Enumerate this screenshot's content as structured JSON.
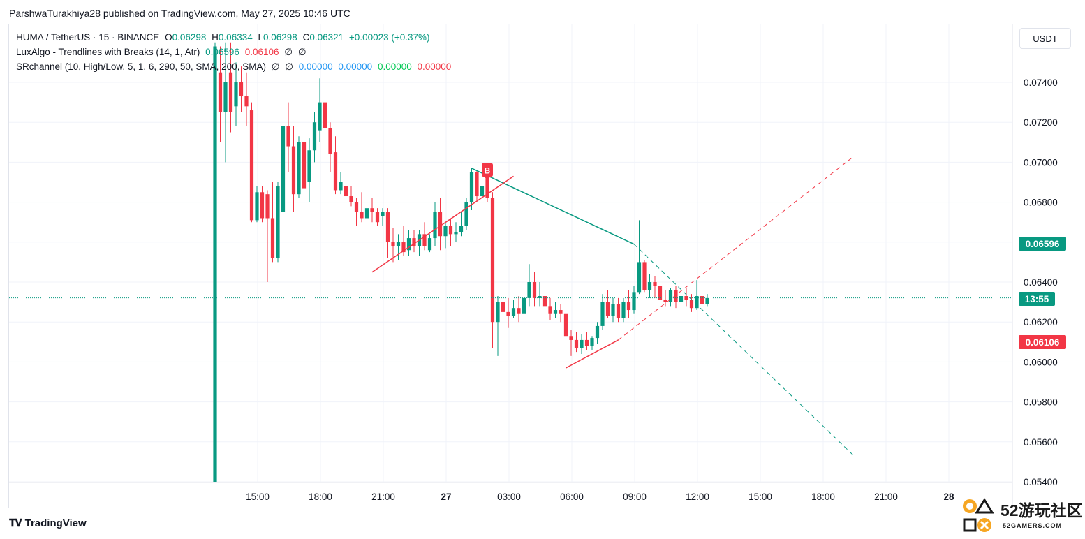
{
  "header": {
    "published": "ParshwaTurakhiya28 published on TradingView.com, May 27, 2025 10:46 UTC"
  },
  "legend": {
    "symbol": "HUMA / TetherUS · 15 · BINANCE",
    "o_label": "O",
    "o_value": "0.06298",
    "h_label": "H",
    "h_value": "0.06334",
    "l_label": "L",
    "l_value": "0.06298",
    "c_label": "C",
    "c_value": "0.06321",
    "change": "+0.00023 (+0.37%)",
    "ind1_name": "LuxAlgo - Trendlines with Breaks (14, 1, Atr)",
    "ind1_v1": "0.06596",
    "ind1_v2": "0.06106",
    "ind1_v3": "∅",
    "ind1_v4": "∅",
    "ind2_name": "SRchannel (10, High/Low, 5, 1, 6, 290, 50, SMA, 200, SMA)",
    "ind2_v1": "∅",
    "ind2_v2": "∅",
    "ind2_v3": "0.00000",
    "ind2_v4": "0.00000",
    "ind2_v5": "0.00000",
    "ind2_v6": "0.00000"
  },
  "currency": "USDT",
  "tags": {
    "upper_trend": "0.06596",
    "countdown": "13:55",
    "lower_trend": "0.06106"
  },
  "marker": "B",
  "brand": "TradingView",
  "watermark": {
    "text": "52游玩社区",
    "sub": "52GAMERS.COM"
  },
  "colors": {
    "up": "#089981",
    "down": "#f23645",
    "grid": "#f0f3fa"
  },
  "chart_data": {
    "type": "candlestick",
    "symbol": "HUMA / TetherUS",
    "interval": "15",
    "ylim": [
      0.054,
      0.0755
    ],
    "y_ticks": [
      "0.07400",
      "0.07200",
      "0.07000",
      "0.06800",
      "0.06600",
      "0.06400",
      "0.06200",
      "0.06000",
      "0.05800",
      "0.05600",
      "0.05400"
    ],
    "x_ticks": [
      "15:00",
      "18:00",
      "21:00",
      "27",
      "03:00",
      "06:00",
      "09:00",
      "12:00",
      "15:00",
      "18:00",
      "21:00",
      "28"
    ],
    "last_price": 0.06321,
    "candles": [
      {
        "o": 0.054,
        "h": 0.076,
        "l": 0.054,
        "c": 0.0758
      },
      {
        "o": 0.0745,
        "h": 0.0758,
        "l": 0.071,
        "c": 0.0725
      },
      {
        "o": 0.0725,
        "h": 0.076,
        "l": 0.07,
        "c": 0.074
      },
      {
        "o": 0.0745,
        "h": 0.076,
        "l": 0.0715,
        "c": 0.0725
      },
      {
        "o": 0.0728,
        "h": 0.075,
        "l": 0.0718,
        "c": 0.074
      },
      {
        "o": 0.074,
        "h": 0.0748,
        "l": 0.0725,
        "c": 0.0733
      },
      {
        "o": 0.0733,
        "h": 0.0745,
        "l": 0.0718,
        "c": 0.0728
      },
      {
        "o": 0.0726,
        "h": 0.073,
        "l": 0.067,
        "c": 0.0671
      },
      {
        "o": 0.0671,
        "h": 0.0688,
        "l": 0.067,
        "c": 0.0685
      },
      {
        "o": 0.0685,
        "h": 0.0688,
        "l": 0.067,
        "c": 0.0672
      },
      {
        "o": 0.0684,
        "h": 0.0686,
        "l": 0.064,
        "c": 0.0672
      },
      {
        "o": 0.0672,
        "h": 0.069,
        "l": 0.065,
        "c": 0.0652
      },
      {
        "o": 0.0652,
        "h": 0.069,
        "l": 0.065,
        "c": 0.0688
      },
      {
        "o": 0.0675,
        "h": 0.0722,
        "l": 0.0673,
        "c": 0.0718
      },
      {
        "o": 0.0718,
        "h": 0.073,
        "l": 0.0695,
        "c": 0.0708
      },
      {
        "o": 0.0708,
        "h": 0.0718,
        "l": 0.0675,
        "c": 0.0684
      },
      {
        "o": 0.0684,
        "h": 0.0713,
        "l": 0.0682,
        "c": 0.071
      },
      {
        "o": 0.071,
        "h": 0.0715,
        "l": 0.0683,
        "c": 0.0687
      },
      {
        "o": 0.069,
        "h": 0.0712,
        "l": 0.068,
        "c": 0.0706
      },
      {
        "o": 0.0706,
        "h": 0.0725,
        "l": 0.07,
        "c": 0.072
      },
      {
        "o": 0.0716,
        "h": 0.0742,
        "l": 0.071,
        "c": 0.073
      },
      {
        "o": 0.073,
        "h": 0.0732,
        "l": 0.0705,
        "c": 0.0717
      },
      {
        "o": 0.0717,
        "h": 0.072,
        "l": 0.0695,
        "c": 0.0704
      },
      {
        "o": 0.0705,
        "h": 0.0713,
        "l": 0.0684,
        "c": 0.0686
      },
      {
        "o": 0.0686,
        "h": 0.0695,
        "l": 0.0684,
        "c": 0.069
      },
      {
        "o": 0.0688,
        "h": 0.0693,
        "l": 0.067,
        "c": 0.0683
      },
      {
        "o": 0.0683,
        "h": 0.0688,
        "l": 0.0678,
        "c": 0.068
      },
      {
        "o": 0.068,
        "h": 0.0682,
        "l": 0.0668,
        "c": 0.0675
      },
      {
        "o": 0.0675,
        "h": 0.0685,
        "l": 0.067,
        "c": 0.0672
      },
      {
        "o": 0.0672,
        "h": 0.0681,
        "l": 0.065,
        "c": 0.0677
      },
      {
        "o": 0.0677,
        "h": 0.0682,
        "l": 0.067,
        "c": 0.0675
      },
      {
        "o": 0.0675,
        "h": 0.0677,
        "l": 0.0668,
        "c": 0.067
      },
      {
        "o": 0.0673,
        "h": 0.0677,
        "l": 0.0668,
        "c": 0.0675
      },
      {
        "o": 0.0675,
        "h": 0.0677,
        "l": 0.0652,
        "c": 0.066
      },
      {
        "o": 0.066,
        "h": 0.0667,
        "l": 0.065,
        "c": 0.0658
      },
      {
        "o": 0.0658,
        "h": 0.0664,
        "l": 0.0651,
        "c": 0.066
      },
      {
        "o": 0.066,
        "h": 0.0668,
        "l": 0.0653,
        "c": 0.0655
      },
      {
        "o": 0.0656,
        "h": 0.0666,
        "l": 0.0653,
        "c": 0.0662
      },
      {
        "o": 0.0662,
        "h": 0.0666,
        "l": 0.0655,
        "c": 0.0658
      },
      {
        "o": 0.0658,
        "h": 0.0666,
        "l": 0.0653,
        "c": 0.0664
      },
      {
        "o": 0.0664,
        "h": 0.067,
        "l": 0.0656,
        "c": 0.0658
      },
      {
        "o": 0.0656,
        "h": 0.0664,
        "l": 0.0655,
        "c": 0.0662
      },
      {
        "o": 0.0662,
        "h": 0.068,
        "l": 0.0658,
        "c": 0.0675
      },
      {
        "o": 0.0675,
        "h": 0.0682,
        "l": 0.0656,
        "c": 0.0663
      },
      {
        "o": 0.0663,
        "h": 0.067,
        "l": 0.0657,
        "c": 0.0668
      },
      {
        "o": 0.0668,
        "h": 0.0672,
        "l": 0.0658,
        "c": 0.0664
      },
      {
        "o": 0.0664,
        "h": 0.067,
        "l": 0.066,
        "c": 0.0665
      },
      {
        "o": 0.0665,
        "h": 0.0675,
        "l": 0.0663,
        "c": 0.0668
      },
      {
        "o": 0.0668,
        "h": 0.0682,
        "l": 0.0666,
        "c": 0.068
      },
      {
        "o": 0.068,
        "h": 0.0697,
        "l": 0.0676,
        "c": 0.0695
      },
      {
        "o": 0.0695,
        "h": 0.0696,
        "l": 0.068,
        "c": 0.0683
      },
      {
        "o": 0.0683,
        "h": 0.069,
        "l": 0.0675,
        "c": 0.0688
      },
      {
        "o": 0.0692,
        "h": 0.0696,
        "l": 0.068,
        "c": 0.0682
      },
      {
        "o": 0.0682,
        "h": 0.0685,
        "l": 0.0607,
        "c": 0.062
      },
      {
        "o": 0.062,
        "h": 0.0633,
        "l": 0.0603,
        "c": 0.063
      },
      {
        "o": 0.063,
        "h": 0.064,
        "l": 0.062,
        "c": 0.0625
      },
      {
        "o": 0.0625,
        "h": 0.0632,
        "l": 0.0617,
        "c": 0.0623
      },
      {
        "o": 0.0623,
        "h": 0.0631,
        "l": 0.0622,
        "c": 0.0627
      },
      {
        "o": 0.0627,
        "h": 0.0633,
        "l": 0.062,
        "c": 0.0624
      },
      {
        "o": 0.0624,
        "h": 0.0638,
        "l": 0.0621,
        "c": 0.0632
      },
      {
        "o": 0.0632,
        "h": 0.0649,
        "l": 0.0628,
        "c": 0.064
      },
      {
        "o": 0.064,
        "h": 0.0645,
        "l": 0.0628,
        "c": 0.0632
      },
      {
        "o": 0.0632,
        "h": 0.064,
        "l": 0.0628,
        "c": 0.0633
      },
      {
        "o": 0.0633,
        "h": 0.0635,
        "l": 0.0622,
        "c": 0.0628
      },
      {
        "o": 0.0628,
        "h": 0.0632,
        "l": 0.0621,
        "c": 0.0624
      },
      {
        "o": 0.0624,
        "h": 0.063,
        "l": 0.0622,
        "c": 0.0626
      },
      {
        "o": 0.0626,
        "h": 0.0629,
        "l": 0.062,
        "c": 0.0624
      },
      {
        "o": 0.0624,
        "h": 0.0626,
        "l": 0.061,
        "c": 0.0613
      },
      {
        "o": 0.0613,
        "h": 0.0616,
        "l": 0.0603,
        "c": 0.0611
      },
      {
        "o": 0.0611,
        "h": 0.0615,
        "l": 0.0605,
        "c": 0.0607
      },
      {
        "o": 0.0607,
        "h": 0.0614,
        "l": 0.0604,
        "c": 0.0611
      },
      {
        "o": 0.0611,
        "h": 0.0615,
        "l": 0.0606,
        "c": 0.0608
      },
      {
        "o": 0.0608,
        "h": 0.0613,
        "l": 0.0606,
        "c": 0.0612
      },
      {
        "o": 0.0612,
        "h": 0.062,
        "l": 0.0609,
        "c": 0.0618
      },
      {
        "o": 0.0618,
        "h": 0.0634,
        "l": 0.0616,
        "c": 0.063
      },
      {
        "o": 0.063,
        "h": 0.0636,
        "l": 0.0622,
        "c": 0.0623
      },
      {
        "o": 0.0623,
        "h": 0.0632,
        "l": 0.062,
        "c": 0.0629
      },
      {
        "o": 0.0629,
        "h": 0.0632,
        "l": 0.062,
        "c": 0.0622
      },
      {
        "o": 0.0622,
        "h": 0.0632,
        "l": 0.062,
        "c": 0.063
      },
      {
        "o": 0.063,
        "h": 0.0636,
        "l": 0.0622,
        "c": 0.0626
      },
      {
        "o": 0.0626,
        "h": 0.0638,
        "l": 0.0624,
        "c": 0.0635
      },
      {
        "o": 0.0635,
        "h": 0.0671,
        "l": 0.0634,
        "c": 0.065
      },
      {
        "o": 0.065,
        "h": 0.0651,
        "l": 0.0635,
        "c": 0.0636
      },
      {
        "o": 0.0636,
        "h": 0.0644,
        "l": 0.0632,
        "c": 0.064
      },
      {
        "o": 0.064,
        "h": 0.0643,
        "l": 0.0632,
        "c": 0.0638
      },
      {
        "o": 0.0638,
        "h": 0.0642,
        "l": 0.0621,
        "c": 0.0631
      },
      {
        "o": 0.0631,
        "h": 0.0636,
        "l": 0.0628,
        "c": 0.063
      },
      {
        "o": 0.063,
        "h": 0.0637,
        "l": 0.0628,
        "c": 0.0636
      },
      {
        "o": 0.0636,
        "h": 0.0638,
        "l": 0.0627,
        "c": 0.063
      },
      {
        "o": 0.063,
        "h": 0.0635,
        "l": 0.0628,
        "c": 0.0633
      },
      {
        "o": 0.0633,
        "h": 0.0637,
        "l": 0.0628,
        "c": 0.0631
      },
      {
        "o": 0.0631,
        "h": 0.0634,
        "l": 0.0625,
        "c": 0.0627
      },
      {
        "o": 0.0627,
        "h": 0.0641,
        "l": 0.0626,
        "c": 0.0633
      },
      {
        "o": 0.0633,
        "h": 0.064,
        "l": 0.0628,
        "c": 0.0629
      },
      {
        "o": 0.0629,
        "h": 0.0634,
        "l": 0.0628,
        "c": 0.0632
      }
    ],
    "trendlines": [
      {
        "name": "upper-trendline",
        "color": "#089981",
        "from": [
          49,
          0.0697
        ],
        "to": [
          80,
          0.0659
        ],
        "extend_dashed_to": [
          122,
          0.0553
        ]
      },
      {
        "name": "support-breakout-line",
        "color": "#f23645",
        "from": [
          30,
          0.0645
        ],
        "to": [
          57,
          0.0693
        ]
      },
      {
        "name": "lower-trendline",
        "color": "#f23645",
        "from": [
          67,
          0.0597
        ],
        "to": [
          77,
          0.0611
        ],
        "extend_dashed_to": [
          122,
          0.0703
        ]
      }
    ],
    "break_marker": {
      "label": "B",
      "index": 52,
      "price": 0.0693
    }
  }
}
